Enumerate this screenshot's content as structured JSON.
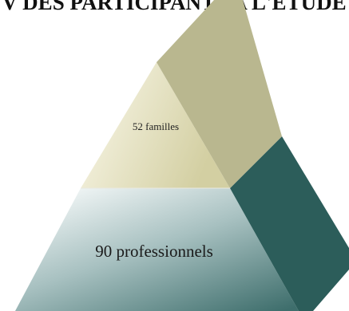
{
  "title": "V DES PARTICIPANTS A L'ETUDE",
  "pyramid": {
    "top_level": {
      "label": "52 familles",
      "value": 52
    },
    "bottom_level": {
      "label": "90 professionnels",
      "value": 90
    }
  },
  "colors": {
    "top_front_light": "#fbf9ec",
    "top_front_dark": "#d3cfa2",
    "top_side": "#b9b78f",
    "bottom_front_light": "#f4f8f8",
    "bottom_front_mid": "#a8c1c1",
    "bottom_front_dark": "#3e6e6c",
    "bottom_side": "#2c5d5a"
  }
}
